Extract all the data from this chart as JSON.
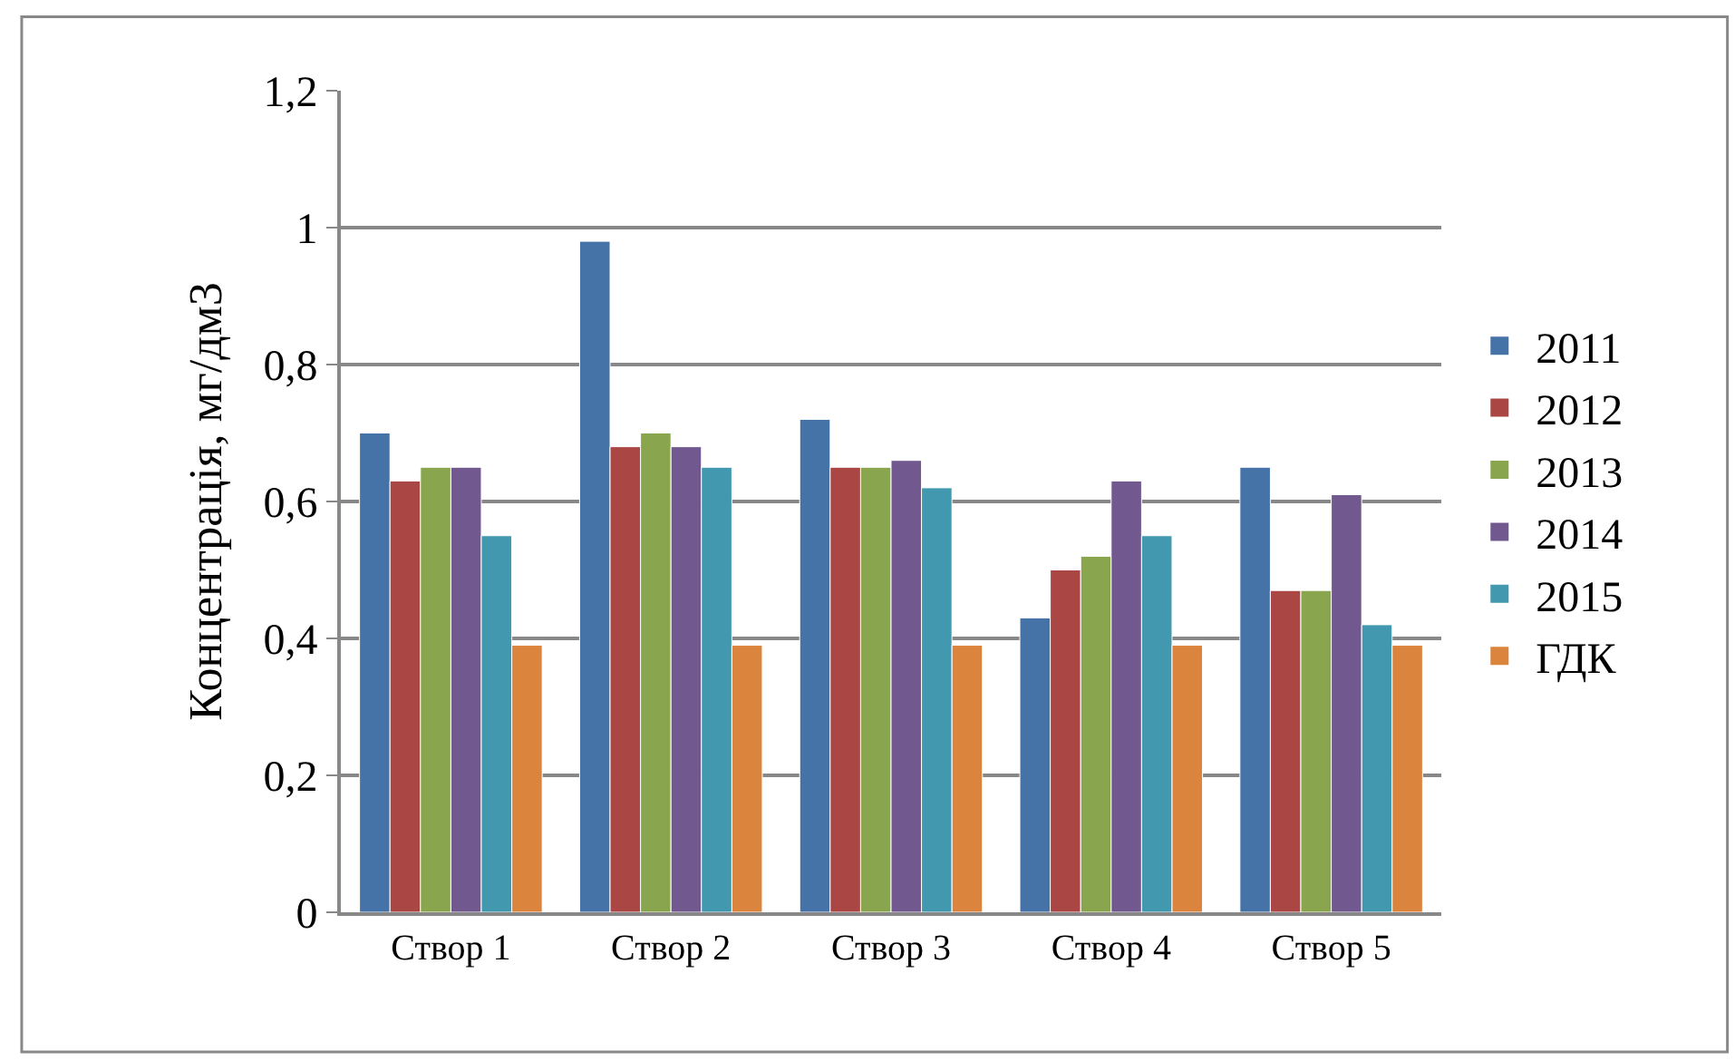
{
  "chart_data": {
    "type": "bar",
    "ylabel": "Концентрація, мг/дм3",
    "categories": [
      "Створ 1",
      "Створ 2",
      "Створ 3",
      "Створ 4",
      "Створ 5"
    ],
    "series": [
      {
        "name": "2011",
        "color": "#4572a7",
        "values": [
          0.7,
          0.98,
          0.72,
          0.43,
          0.65
        ]
      },
      {
        "name": "2012",
        "color": "#aa4643",
        "values": [
          0.63,
          0.68,
          0.65,
          0.5,
          0.47
        ]
      },
      {
        "name": "2013",
        "color": "#89a54e",
        "values": [
          0.65,
          0.7,
          0.65,
          0.52,
          0.47
        ]
      },
      {
        "name": "2014",
        "color": "#71588f",
        "values": [
          0.65,
          0.68,
          0.66,
          0.63,
          0.61
        ]
      },
      {
        "name": "2015",
        "color": "#4198af",
        "values": [
          0.55,
          0.65,
          0.62,
          0.55,
          0.42
        ]
      },
      {
        "name": "ГДК",
        "color": "#db843d",
        "values": [
          0.39,
          0.39,
          0.39,
          0.39,
          0.39
        ]
      }
    ],
    "ylim": [
      0,
      1.2
    ],
    "yticks": [
      0,
      {
        "value": 0.2,
        "label": "0,2"
      },
      {
        "value": 0.4,
        "label": "0,4"
      },
      {
        "value": 0.6,
        "label": "0,6"
      },
      {
        "value": 0.8,
        "label": "0,8"
      },
      1,
      {
        "value": 1.2,
        "label": "1,2"
      }
    ],
    "grid": "y",
    "legend": "right"
  }
}
